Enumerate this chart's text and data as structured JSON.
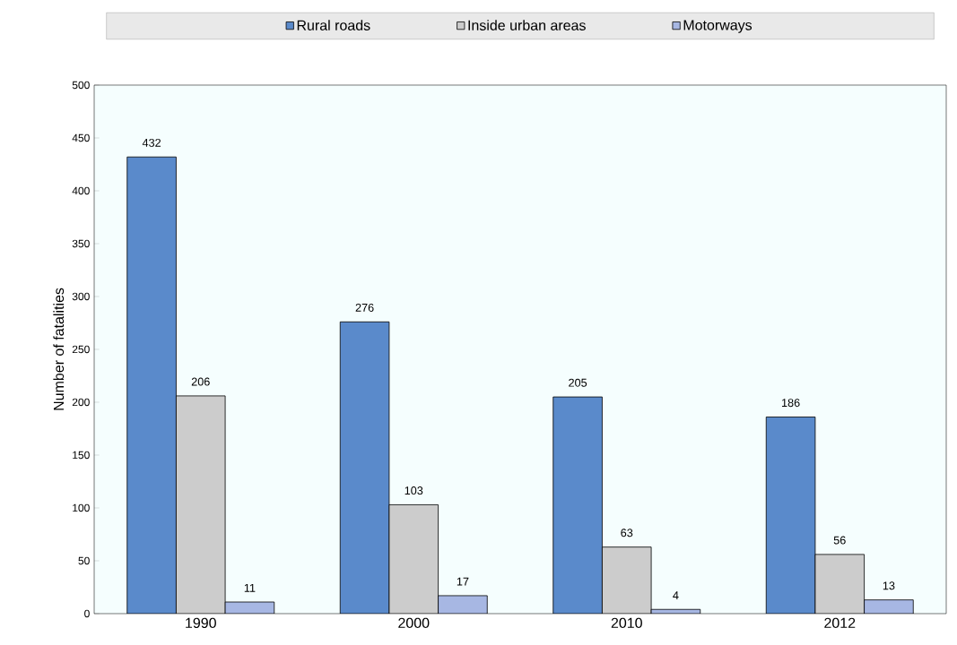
{
  "chart_data": {
    "type": "bar",
    "ylabel": "Number of fatalities",
    "categories": [
      "1990",
      "2000",
      "2010",
      "2012"
    ],
    "series": [
      {
        "name": "Rural roads",
        "color": "#5a8acb",
        "values": [
          432,
          276,
          205,
          186
        ]
      },
      {
        "name": "Inside urban areas",
        "color": "#cccccc",
        "values": [
          206,
          103,
          63,
          56
        ]
      },
      {
        "name": "Motorways",
        "color": "#a7b7e3",
        "values": [
          11,
          17,
          4,
          13
        ]
      }
    ],
    "ylim": [
      0,
      500
    ],
    "yticks": [
      0,
      50,
      100,
      150,
      200,
      250,
      300,
      350,
      400,
      450,
      500
    ],
    "data_labels": true,
    "legend": "top",
    "grid": false
  }
}
